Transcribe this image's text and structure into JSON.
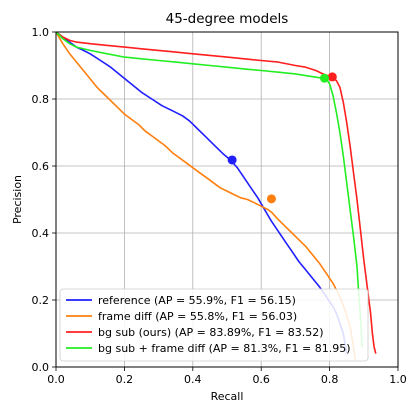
{
  "chart_data": {
    "type": "line",
    "title": "45-degree models",
    "xlabel": "Recall",
    "ylabel": "Precision",
    "xlim": [
      0.0,
      1.0
    ],
    "ylim": [
      0.0,
      1.0
    ],
    "xticks": [
      "0.0",
      "0.2",
      "0.4",
      "0.6",
      "0.8",
      "1.0"
    ],
    "yticks": [
      "0.0",
      "0.2",
      "0.4",
      "0.6",
      "0.8",
      "1.0"
    ],
    "grid": true,
    "legend_position": "bottom-left",
    "series": [
      {
        "name": "reference (AP = 55.9%, F1 = 56.15)",
        "color": "#1f1fff",
        "points": [
          [
            0.0,
            1.0
          ],
          [
            0.02,
            0.985
          ],
          [
            0.04,
            0.97
          ],
          [
            0.06,
            0.955
          ],
          [
            0.08,
            0.945
          ],
          [
            0.1,
            0.935
          ],
          [
            0.13,
            0.915
          ],
          [
            0.16,
            0.895
          ],
          [
            0.19,
            0.87
          ],
          [
            0.22,
            0.845
          ],
          [
            0.25,
            0.82
          ],
          [
            0.28,
            0.8
          ],
          [
            0.31,
            0.78
          ],
          [
            0.34,
            0.765
          ],
          [
            0.37,
            0.75
          ],
          [
            0.39,
            0.735
          ],
          [
            0.41,
            0.715
          ],
          [
            0.43,
            0.695
          ],
          [
            0.45,
            0.675
          ],
          [
            0.47,
            0.655
          ],
          [
            0.49,
            0.635
          ],
          [
            0.51,
            0.618
          ],
          [
            0.53,
            0.595
          ],
          [
            0.55,
            0.565
          ],
          [
            0.57,
            0.535
          ],
          [
            0.59,
            0.505
          ],
          [
            0.61,
            0.47
          ],
          [
            0.63,
            0.435
          ],
          [
            0.65,
            0.405
          ],
          [
            0.67,
            0.375
          ],
          [
            0.69,
            0.345
          ],
          [
            0.71,
            0.315
          ],
          [
            0.73,
            0.29
          ],
          [
            0.75,
            0.265
          ],
          [
            0.77,
            0.24
          ],
          [
            0.79,
            0.21
          ],
          [
            0.81,
            0.18
          ],
          [
            0.82,
            0.16
          ],
          [
            0.83,
            0.13
          ],
          [
            0.84,
            0.1
          ],
          [
            0.845,
            0.07
          ],
          [
            0.85,
            0.04
          ]
        ],
        "marker": [
          0.515,
          0.618
        ]
      },
      {
        "name": "frame diff (AP = 55.8%, F1 = 56.03)",
        "color": "#ff7f0e",
        "points": [
          [
            0.0,
            1.0
          ],
          [
            0.02,
            0.965
          ],
          [
            0.04,
            0.935
          ],
          [
            0.06,
            0.91
          ],
          [
            0.08,
            0.885
          ],
          [
            0.1,
            0.86
          ],
          [
            0.12,
            0.835
          ],
          [
            0.14,
            0.815
          ],
          [
            0.16,
            0.795
          ],
          [
            0.18,
            0.775
          ],
          [
            0.2,
            0.755
          ],
          [
            0.22,
            0.74
          ],
          [
            0.24,
            0.725
          ],
          [
            0.26,
            0.705
          ],
          [
            0.28,
            0.69
          ],
          [
            0.3,
            0.675
          ],
          [
            0.32,
            0.66
          ],
          [
            0.34,
            0.64
          ],
          [
            0.36,
            0.625
          ],
          [
            0.38,
            0.61
          ],
          [
            0.4,
            0.595
          ],
          [
            0.42,
            0.58
          ],
          [
            0.44,
            0.565
          ],
          [
            0.46,
            0.55
          ],
          [
            0.48,
            0.535
          ],
          [
            0.5,
            0.525
          ],
          [
            0.52,
            0.515
          ],
          [
            0.54,
            0.505
          ],
          [
            0.56,
            0.5
          ],
          [
            0.58,
            0.49
          ],
          [
            0.6,
            0.48
          ],
          [
            0.62,
            0.47
          ],
          [
            0.63,
            0.462
          ],
          [
            0.65,
            0.44
          ],
          [
            0.67,
            0.42
          ],
          [
            0.69,
            0.4
          ],
          [
            0.71,
            0.38
          ],
          [
            0.73,
            0.36
          ],
          [
            0.75,
            0.335
          ],
          [
            0.77,
            0.31
          ],
          [
            0.79,
            0.28
          ],
          [
            0.81,
            0.25
          ],
          [
            0.83,
            0.21
          ],
          [
            0.845,
            0.17
          ],
          [
            0.86,
            0.12
          ],
          [
            0.87,
            0.06
          ],
          [
            0.875,
            0.02
          ]
        ],
        "marker": [
          0.63,
          0.502
        ]
      },
      {
        "name": "bg sub (ours) (AP = 83.89%, F1 = 83.52)",
        "color": "#ff1f1f",
        "points": [
          [
            0.0,
            1.0
          ],
          [
            0.02,
            0.985
          ],
          [
            0.04,
            0.975
          ],
          [
            0.06,
            0.97
          ],
          [
            0.1,
            0.965
          ],
          [
            0.15,
            0.96
          ],
          [
            0.2,
            0.955
          ],
          [
            0.25,
            0.95
          ],
          [
            0.3,
            0.945
          ],
          [
            0.35,
            0.94
          ],
          [
            0.4,
            0.935
          ],
          [
            0.45,
            0.93
          ],
          [
            0.5,
            0.925
          ],
          [
            0.55,
            0.92
          ],
          [
            0.6,
            0.915
          ],
          [
            0.65,
            0.91
          ],
          [
            0.7,
            0.9
          ],
          [
            0.73,
            0.895
          ],
          [
            0.76,
            0.885
          ],
          [
            0.78,
            0.875
          ],
          [
            0.8,
            0.868
          ],
          [
            0.82,
            0.855
          ],
          [
            0.83,
            0.835
          ],
          [
            0.84,
            0.79
          ],
          [
            0.85,
            0.73
          ],
          [
            0.86,
            0.66
          ],
          [
            0.87,
            0.58
          ],
          [
            0.88,
            0.5
          ],
          [
            0.89,
            0.41
          ],
          [
            0.9,
            0.32
          ],
          [
            0.91,
            0.24
          ],
          [
            0.92,
            0.16
          ],
          [
            0.925,
            0.1
          ],
          [
            0.93,
            0.06
          ],
          [
            0.935,
            0.04
          ]
        ],
        "marker": [
          0.808,
          0.866
        ]
      },
      {
        "name": "bg sub + frame diff (AP = 81.3%, F1 = 81.95)",
        "color": "#22ee22",
        "points": [
          [
            0.0,
            1.0
          ],
          [
            0.02,
            0.98
          ],
          [
            0.04,
            0.965
          ],
          [
            0.06,
            0.955
          ],
          [
            0.1,
            0.945
          ],
          [
            0.15,
            0.935
          ],
          [
            0.2,
            0.925
          ],
          [
            0.25,
            0.92
          ],
          [
            0.3,
            0.915
          ],
          [
            0.35,
            0.91
          ],
          [
            0.4,
            0.905
          ],
          [
            0.45,
            0.9
          ],
          [
            0.5,
            0.895
          ],
          [
            0.55,
            0.89
          ],
          [
            0.6,
            0.885
          ],
          [
            0.65,
            0.88
          ],
          [
            0.7,
            0.875
          ],
          [
            0.73,
            0.87
          ],
          [
            0.76,
            0.865
          ],
          [
            0.78,
            0.862
          ],
          [
            0.79,
            0.86
          ],
          [
            0.8,
            0.845
          ],
          [
            0.81,
            0.81
          ],
          [
            0.82,
            0.76
          ],
          [
            0.83,
            0.7
          ],
          [
            0.84,
            0.63
          ],
          [
            0.85,
            0.55
          ],
          [
            0.86,
            0.47
          ],
          [
            0.87,
            0.39
          ],
          [
            0.88,
            0.3
          ],
          [
            0.885,
            0.22
          ],
          [
            0.89,
            0.15
          ],
          [
            0.893,
            0.1
          ],
          [
            0.895,
            0.06
          ]
        ],
        "marker": [
          0.785,
          0.862
        ]
      }
    ]
  }
}
